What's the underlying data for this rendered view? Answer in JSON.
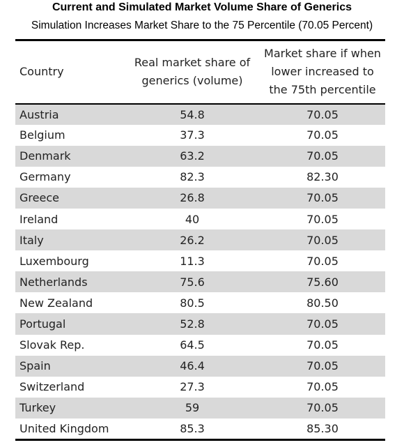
{
  "header": {
    "title": "Current and Simulated Market Volume Share of Generics",
    "subtitle": "Simulation Increases Market Share to the 75 Percentile (70.05 Percent)"
  },
  "table": {
    "columns": [
      [
        "Country"
      ],
      [
        "Real market share of",
        "generics (volume)"
      ],
      [
        "Market share if when",
        "lower increased to",
        "the 75th percentile"
      ]
    ],
    "rows": [
      [
        "Austria",
        "54.8",
        "70.05"
      ],
      [
        "Belgium",
        "37.3",
        "70.05"
      ],
      [
        "Denmark",
        "63.2",
        "70.05"
      ],
      [
        "Germany",
        "82.3",
        "82.30"
      ],
      [
        "Greece",
        "26.8",
        "70.05"
      ],
      [
        "Ireland",
        "40",
        "70.05"
      ],
      [
        "Italy",
        "26.2",
        "70.05"
      ],
      [
        "Luxembourg",
        "11.3",
        "70.05"
      ],
      [
        "Netherlands",
        "75.6",
        "75.60"
      ],
      [
        "New Zealand",
        "80.5",
        "80.50"
      ],
      [
        "Portugal",
        "52.8",
        "70.05"
      ],
      [
        "Slovak Rep.",
        "64.5",
        "70.05"
      ],
      [
        "Spain",
        "46.4",
        "70.05"
      ],
      [
        "Switzerland",
        "27.3",
        "70.05"
      ],
      [
        "Turkey",
        "59",
        "70.05"
      ],
      [
        "United Kingdom",
        "85.3",
        "85.30"
      ]
    ]
  }
}
